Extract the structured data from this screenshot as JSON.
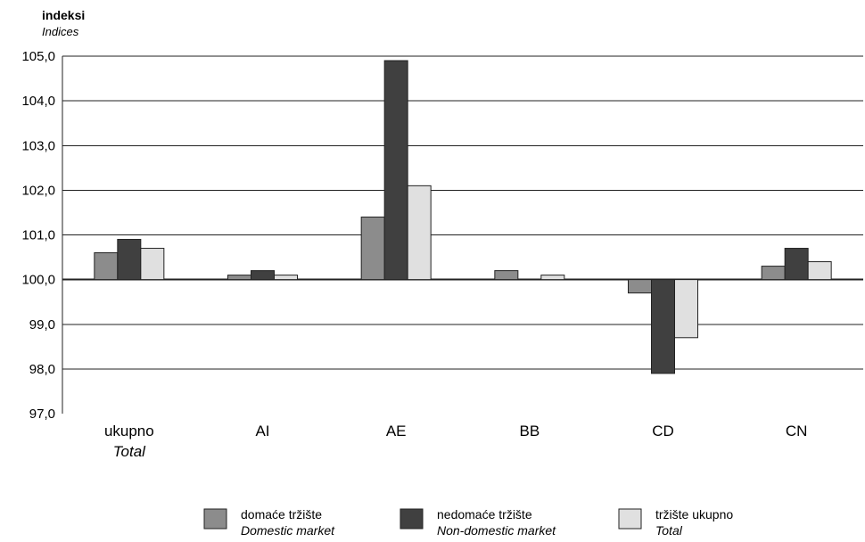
{
  "chart_data": {
    "type": "bar",
    "ylabel": "indeksi",
    "ylabel_en": "Indices",
    "ylim": [
      97,
      105
    ],
    "yticks": [
      97,
      98,
      99,
      100,
      101,
      102,
      103,
      104,
      105
    ],
    "ytick_labels": [
      "97,0",
      "98,0",
      "99,0",
      "100,0",
      "101,0",
      "102,0",
      "103,0",
      "104,0",
      "105,0"
    ],
    "baseline": 100,
    "grid": true,
    "categories": [
      {
        "label": "ukupno",
        "sublabel": "Total"
      },
      {
        "label": "AI",
        "sublabel": ""
      },
      {
        "label": "AE",
        "sublabel": ""
      },
      {
        "label": "BB",
        "sublabel": ""
      },
      {
        "label": "CD",
        "sublabel": ""
      },
      {
        "label": "CN",
        "sublabel": ""
      }
    ],
    "series": [
      {
        "name": "domaće tržište",
        "name_en": "Domestic market",
        "color": "#8c8c8c",
        "values": [
          100.6,
          100.1,
          101.4,
          100.2,
          99.7,
          100.3
        ]
      },
      {
        "name": "nedomaće tržište",
        "name_en": "Non-domestic market",
        "color": "#404040",
        "values": [
          100.9,
          100.2,
          104.9,
          null,
          97.9,
          100.7
        ]
      },
      {
        "name": "tržište ukupno",
        "name_en": "Total",
        "color": "#e0e0e0",
        "values": [
          100.7,
          100.1,
          102.1,
          100.1,
          98.7,
          100.4
        ]
      }
    ],
    "legend_position": "bottom"
  }
}
